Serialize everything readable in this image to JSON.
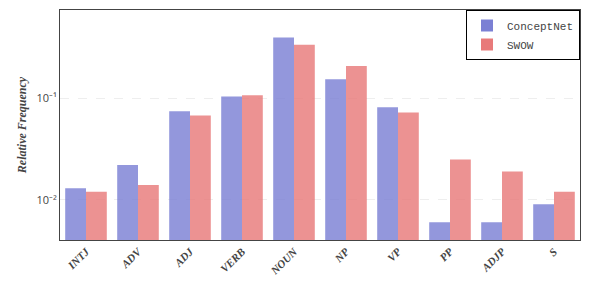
{
  "chart_data": {
    "type": "bar",
    "categories": [
      "INTJ",
      "ADV",
      "ADJ",
      "VERB",
      "NOUN",
      "NP",
      "VP",
      "PP",
      "ADJP",
      "S"
    ],
    "series": [
      {
        "name": "ConceptNet",
        "color": "#7b80d4",
        "values": [
          0.013,
          0.022,
          0.075,
          0.105,
          0.4,
          0.155,
          0.082,
          0.006,
          0.006,
          0.009
        ]
      },
      {
        "name": "SWOW",
        "color": "#e87a7a",
        "values": [
          0.012,
          0.014,
          0.068,
          0.108,
          0.34,
          0.21,
          0.073,
          0.025,
          0.019,
          0.012
        ]
      }
    ],
    "ylabel": "Relative Frequency",
    "log": "y",
    "ylim": [
      0.004,
      0.75
    ],
    "yticks": [
      {
        "value": 0.01,
        "label": "10⁻²"
      },
      {
        "value": 0.1,
        "label": "10⁻¹"
      }
    ],
    "grid": true,
    "legend": "upper right"
  }
}
